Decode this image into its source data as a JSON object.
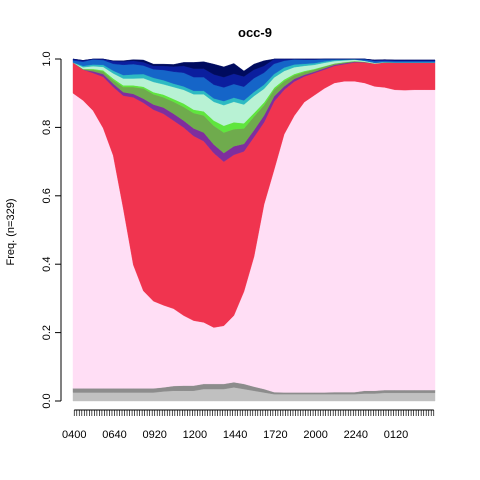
{
  "chart_data": {
    "type": "area",
    "title": "occ-9",
    "xlabel": "",
    "ylabel": "Freq. (n=329)",
    "ylim": [
      0,
      1
    ],
    "yticks": [
      "0.0",
      "0.2",
      "0.4",
      "0.6",
      "0.8",
      "1.0"
    ],
    "xtick_labels": [
      "0400",
      "0640",
      "0920",
      "1200",
      "1440",
      "1720",
      "2000",
      "2240",
      "0120"
    ],
    "n_periods": 144,
    "x": [
      "0400",
      "0440",
      "0520",
      "0600",
      "0640",
      "0720",
      "0800",
      "0840",
      "0920",
      "1000",
      "1040",
      "1120",
      "1200",
      "1240",
      "1320",
      "1400",
      "1440",
      "1520",
      "1600",
      "1640",
      "1720",
      "1800",
      "1840",
      "1920",
      "2000",
      "2040",
      "2120",
      "2200",
      "2240",
      "2320",
      "0000",
      "0040",
      "0120",
      "0200",
      "0240",
      "0320",
      "0400"
    ],
    "series": [
      {
        "color": "#c0c0c0",
        "values": [
          0.025,
          0.025,
          0.025,
          0.025,
          0.025,
          0.025,
          0.025,
          0.025,
          0.025,
          0.028,
          0.03,
          0.03,
          0.03,
          0.035,
          0.035,
          0.035,
          0.04,
          0.035,
          0.03,
          0.025,
          0.02,
          0.02,
          0.02,
          0.02,
          0.02,
          0.02,
          0.02,
          0.02,
          0.02,
          0.022,
          0.022,
          0.024,
          0.024,
          0.024,
          0.024,
          0.024,
          0.024
        ]
      },
      {
        "color": "#8c8c8c",
        "values": [
          0.012,
          0.012,
          0.012,
          0.012,
          0.012,
          0.012,
          0.012,
          0.012,
          0.012,
          0.012,
          0.014,
          0.015,
          0.015,
          0.015,
          0.015,
          0.015,
          0.015,
          0.015,
          0.012,
          0.01,
          0.006,
          0.005,
          0.005,
          0.005,
          0.005,
          0.005,
          0.006,
          0.006,
          0.006,
          0.008,
          0.008,
          0.008,
          0.008,
          0.008,
          0.008,
          0.008,
          0.008
        ]
      },
      {
        "color": "#ffdef5",
        "values": [
          0.863,
          0.842,
          0.812,
          0.761,
          0.681,
          0.526,
          0.361,
          0.285,
          0.255,
          0.24,
          0.226,
          0.205,
          0.19,
          0.18,
          0.165,
          0.17,
          0.195,
          0.27,
          0.38,
          0.54,
          0.65,
          0.755,
          0.809,
          0.849,
          0.869,
          0.889,
          0.904,
          0.909,
          0.909,
          0.9,
          0.89,
          0.885,
          0.878,
          0.877,
          0.878,
          0.878,
          0.878
        ]
      },
      {
        "color": "#f0344f",
        "values": [
          0.09,
          0.09,
          0.11,
          0.15,
          0.2,
          0.33,
          0.49,
          0.55,
          0.56,
          0.56,
          0.55,
          0.55,
          0.54,
          0.53,
          0.51,
          0.48,
          0.47,
          0.41,
          0.35,
          0.24,
          0.2,
          0.13,
          0.1,
          0.075,
          0.065,
          0.055,
          0.05,
          0.05,
          0.055,
          0.06,
          0.067,
          0.073,
          0.08,
          0.081,
          0.08,
          0.08,
          0.08
        ]
      },
      {
        "color": "#7f2e9e",
        "values": [
          0.0,
          0.0,
          0.005,
          0.008,
          0.01,
          0.01,
          0.01,
          0.012,
          0.015,
          0.018,
          0.02,
          0.02,
          0.022,
          0.025,
          0.025,
          0.025,
          0.025,
          0.022,
          0.02,
          0.02,
          0.015,
          0.01,
          0.008,
          0.005,
          0.004,
          0.004,
          0.003,
          0.003,
          0.002,
          0.001,
          0.0,
          0.0,
          0.0,
          0.0,
          0.0,
          0.0,
          0.0
        ]
      },
      {
        "color": "#6fab4d",
        "values": [
          0.0,
          0.002,
          0.005,
          0.008,
          0.01,
          0.015,
          0.02,
          0.03,
          0.03,
          0.03,
          0.035,
          0.04,
          0.045,
          0.05,
          0.055,
          0.06,
          0.05,
          0.045,
          0.04,
          0.03,
          0.02,
          0.015,
          0.01,
          0.008,
          0.006,
          0.005,
          0.004,
          0.003,
          0.002,
          0.001,
          0.0,
          0.0,
          0.0,
          0.0,
          0.0,
          0.0,
          0.0
        ]
      },
      {
        "color": "#5fe63d",
        "values": [
          0.0,
          0.0,
          0.002,
          0.003,
          0.005,
          0.005,
          0.005,
          0.005,
          0.006,
          0.008,
          0.008,
          0.01,
          0.01,
          0.012,
          0.015,
          0.02,
          0.02,
          0.015,
          0.01,
          0.008,
          0.005,
          0.005,
          0.004,
          0.003,
          0.002,
          0.001,
          0.0,
          0.0,
          0.0,
          0.0,
          0.0,
          0.0,
          0.0,
          0.0,
          0.0,
          0.0,
          0.0
        ]
      },
      {
        "color": "#b8f2d4",
        "values": [
          0.0,
          0.005,
          0.008,
          0.01,
          0.015,
          0.02,
          0.02,
          0.025,
          0.03,
          0.03,
          0.035,
          0.04,
          0.045,
          0.05,
          0.055,
          0.06,
          0.06,
          0.055,
          0.05,
          0.04,
          0.03,
          0.025,
          0.02,
          0.015,
          0.012,
          0.01,
          0.007,
          0.005,
          0.004,
          0.003,
          0.002,
          0.001,
          0.0,
          0.0,
          0.0,
          0.0,
          0.0
        ]
      },
      {
        "color": "#2dbac2",
        "values": [
          0.0,
          0.004,
          0.005,
          0.006,
          0.008,
          0.01,
          0.012,
          0.012,
          0.012,
          0.012,
          0.01,
          0.01,
          0.01,
          0.01,
          0.01,
          0.012,
          0.012,
          0.012,
          0.012,
          0.012,
          0.01,
          0.01,
          0.008,
          0.006,
          0.005,
          0.004,
          0.003,
          0.002,
          0.001,
          0.0,
          0.0,
          0.0,
          0.0,
          0.0,
          0.0,
          0.0,
          0.0
        ]
      },
      {
        "color": "#1565c8",
        "values": [
          0.006,
          0.012,
          0.015,
          0.014,
          0.02,
          0.03,
          0.03,
          0.025,
          0.025,
          0.03,
          0.035,
          0.04,
          0.04,
          0.04,
          0.04,
          0.04,
          0.04,
          0.04,
          0.04,
          0.035,
          0.03,
          0.02,
          0.015,
          0.012,
          0.01,
          0.009,
          0.008,
          0.008,
          0.007,
          0.006,
          0.005,
          0.004,
          0.004,
          0.004,
          0.004,
          0.004,
          0.004
        ]
      },
      {
        "color": "#0b1e9e",
        "values": [
          0.004,
          0.004,
          0.005,
          0.005,
          0.008,
          0.01,
          0.01,
          0.01,
          0.01,
          0.012,
          0.015,
          0.02,
          0.025,
          0.025,
          0.03,
          0.03,
          0.03,
          0.03,
          0.025,
          0.02,
          0.015,
          0.01,
          0.008,
          0.006,
          0.005,
          0.004,
          0.003,
          0.003,
          0.003,
          0.003,
          0.003,
          0.003,
          0.003,
          0.003,
          0.003,
          0.003,
          0.003
        ]
      },
      {
        "color": "#000b5e",
        "values": [
          0.0,
          0.0,
          0.0,
          0.0,
          0.001,
          0.002,
          0.003,
          0.006,
          0.005,
          0.005,
          0.006,
          0.01,
          0.018,
          0.02,
          0.03,
          0.03,
          0.03,
          0.016,
          0.016,
          0.015,
          0.005,
          0.0,
          0.0,
          0.0,
          0.0,
          0.0,
          0.0,
          0.0,
          0.0,
          0.0,
          0.0,
          0.0,
          0.0,
          0.0,
          0.0,
          0.0,
          0.0
        ]
      }
    ]
  }
}
